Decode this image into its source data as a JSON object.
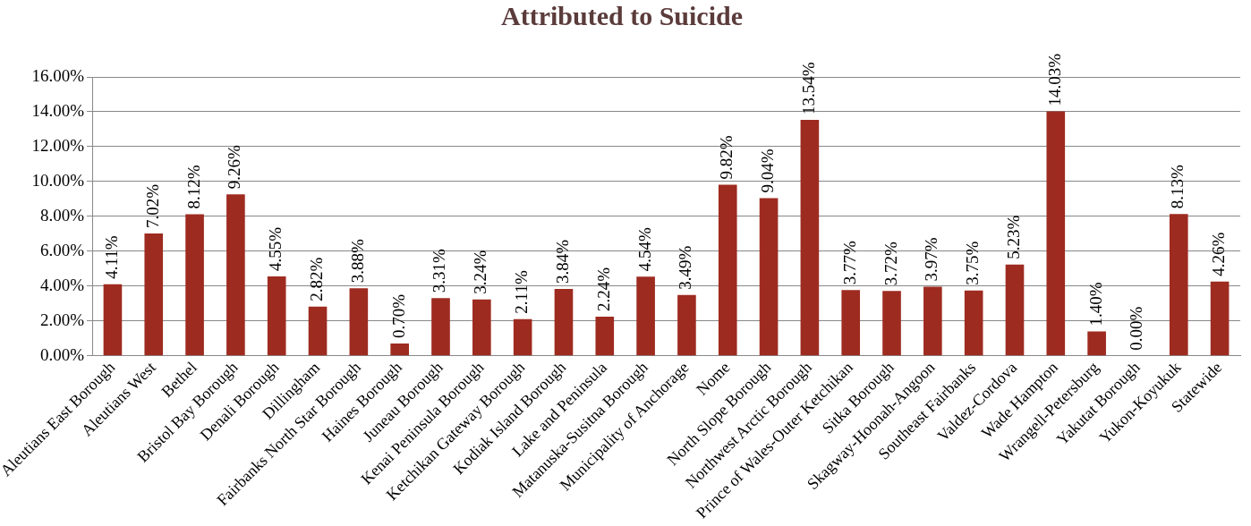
{
  "chart_data": {
    "type": "bar",
    "title": "Attributed to Suicide",
    "categories": [
      "Aleutians East Borough",
      "Aleutians West",
      "Bethel",
      "Bristol Bay Borough",
      "Denali Borough",
      "Dillingham",
      "Fairbanks North Star Borough",
      "Haines Borough",
      "Juneau Borough",
      "Kenai Peninsula Borough",
      "Ketchikan Gateway Borough",
      "Kodiak Island Borough",
      "Lake and Peninsula",
      "Matanuska-Susitna Borough",
      "Municipality of Anchorage",
      "Nome",
      "North Slope Borough",
      "Northwest Arctic Borough",
      "Prince of Wales-Outer Ketchikan",
      "Sitka Borough",
      "Skagway-Hoonah-Angoon",
      "Southeast Fairbanks",
      "Valdez-Cordova",
      "Wade Hampton",
      "Wrangell-Petersburg",
      "Yakutat Borough",
      "Yukon-Koyukuk",
      "Statewide"
    ],
    "values": [
      4.11,
      7.02,
      8.12,
      9.26,
      4.55,
      2.82,
      3.88,
      0.7,
      3.31,
      3.24,
      2.11,
      3.84,
      2.24,
      4.54,
      3.49,
      9.82,
      9.04,
      13.54,
      3.77,
      3.72,
      3.97,
      3.75,
      5.23,
      14.03,
      1.4,
      0.0,
      8.13,
      4.26
    ],
    "value_labels": [
      "4.11%",
      "7.02%",
      "8.12%",
      "9.26%",
      "4.55%",
      "2.82%",
      "3.88%",
      "0.70%",
      "3.31%",
      "3.24%",
      "2.11%",
      "3.84%",
      "2.24%",
      "4.54%",
      "3.49%",
      "9.82%",
      "9.04%",
      "13.54%",
      "3.77%",
      "3.72%",
      "3.97%",
      "3.75%",
      "5.23%",
      "14.03%",
      "1.40%",
      "0.00%",
      "8.13%",
      "4.26%"
    ],
    "color": "#9e2b20",
    "ylim": [
      0,
      16
    ],
    "yticks": [
      {
        "value": 0,
        "label": "0.00%"
      },
      {
        "value": 2,
        "label": "2.00%"
      },
      {
        "value": 4,
        "label": "4.00%"
      },
      {
        "value": 6,
        "label": "6.00%"
      },
      {
        "value": 8,
        "label": "8.00%"
      },
      {
        "value": 10,
        "label": "10.00%"
      },
      {
        "value": 12,
        "label": "12.00%"
      },
      {
        "value": 14,
        "label": "14.00%"
      },
      {
        "value": 16,
        "label": "16.00%"
      }
    ],
    "grid": "y",
    "legend": false
  }
}
